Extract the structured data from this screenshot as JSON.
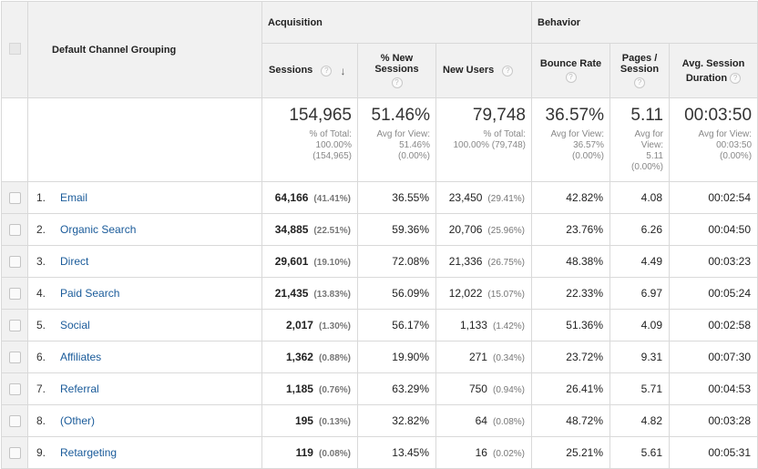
{
  "header": {
    "dimension": "Default Channel Grouping",
    "group_acquisition": "Acquisition",
    "group_behavior": "Behavior",
    "help_glyph": "?",
    "sort_arrow": "↓",
    "columns": {
      "sessions": "Sessions",
      "pct_new_sessions": "% New Sessions",
      "new_users": "New Users",
      "bounce_rate": "Bounce Rate",
      "pages_session": "Pages / Session",
      "avg_session_duration": "Avg. Session Duration"
    }
  },
  "totals": {
    "sessions": {
      "value": "154,965",
      "l1": "% of Total:",
      "l2": "100.00%",
      "l3": "(154,965)"
    },
    "pct_new_sessions": {
      "value": "51.46%",
      "l1": "Avg for View:",
      "l2": "51.46%",
      "l3": "(0.00%)"
    },
    "new_users": {
      "value": "79,748",
      "l1": "% of Total:",
      "l2": "100.00% (79,748)"
    },
    "bounce_rate": {
      "value": "36.57%",
      "l1": "Avg for View:",
      "l2": "36.57%",
      "l3": "(0.00%)"
    },
    "pages_session": {
      "value": "5.11",
      "l1": "Avg for",
      "l2": "View:",
      "l3": "5.11",
      "l4": "(0.00%)"
    },
    "avg_session_duration": {
      "value": "00:03:50",
      "l1": "Avg for View:",
      "l2": "00:03:50",
      "l3": "(0.00%)"
    }
  },
  "rows": [
    {
      "index": "1.",
      "channel": "Email",
      "sessions": "64,166",
      "sessions_pct": "(41.41%)",
      "pct_new": "36.55%",
      "new_users": "23,450",
      "new_users_pct": "(29.41%)",
      "bounce": "42.82%",
      "pages": "4.08",
      "duration": "00:02:54"
    },
    {
      "index": "2.",
      "channel": "Organic Search",
      "sessions": "34,885",
      "sessions_pct": "(22.51%)",
      "pct_new": "59.36%",
      "new_users": "20,706",
      "new_users_pct": "(25.96%)",
      "bounce": "23.76%",
      "pages": "6.26",
      "duration": "00:04:50"
    },
    {
      "index": "3.",
      "channel": "Direct",
      "sessions": "29,601",
      "sessions_pct": "(19.10%)",
      "pct_new": "72.08%",
      "new_users": "21,336",
      "new_users_pct": "(26.75%)",
      "bounce": "48.38%",
      "pages": "4.49",
      "duration": "00:03:23"
    },
    {
      "index": "4.",
      "channel": "Paid Search",
      "sessions": "21,435",
      "sessions_pct": "(13.83%)",
      "pct_new": "56.09%",
      "new_users": "12,022",
      "new_users_pct": "(15.07%)",
      "bounce": "22.33%",
      "pages": "6.97",
      "duration": "00:05:24"
    },
    {
      "index": "5.",
      "channel": "Social",
      "sessions": "2,017",
      "sessions_pct": "(1.30%)",
      "pct_new": "56.17%",
      "new_users": "1,133",
      "new_users_pct": "(1.42%)",
      "bounce": "51.36%",
      "pages": "4.09",
      "duration": "00:02:58"
    },
    {
      "index": "6.",
      "channel": "Affiliates",
      "sessions": "1,362",
      "sessions_pct": "(0.88%)",
      "pct_new": "19.90%",
      "new_users": "271",
      "new_users_pct": "(0.34%)",
      "bounce": "23.72%",
      "pages": "9.31",
      "duration": "00:07:30"
    },
    {
      "index": "7.",
      "channel": "Referral",
      "sessions": "1,185",
      "sessions_pct": "(0.76%)",
      "pct_new": "63.29%",
      "new_users": "750",
      "new_users_pct": "(0.94%)",
      "bounce": "26.41%",
      "pages": "5.71",
      "duration": "00:04:53"
    },
    {
      "index": "8.",
      "channel": "(Other)",
      "sessions": "195",
      "sessions_pct": "(0.13%)",
      "pct_new": "32.82%",
      "new_users": "64",
      "new_users_pct": "(0.08%)",
      "bounce": "48.72%",
      "pages": "4.82",
      "duration": "00:03:28"
    },
    {
      "index": "9.",
      "channel": "Retargeting",
      "sessions": "119",
      "sessions_pct": "(0.08%)",
      "pct_new": "13.45%",
      "new_users": "16",
      "new_users_pct": "(0.02%)",
      "bounce": "25.21%",
      "pages": "5.61",
      "duration": "00:05:31"
    }
  ],
  "colors": {
    "link": "#1a5b9a",
    "header_bg": "#f1f1f1",
    "border": "#d9d9d9"
  }
}
